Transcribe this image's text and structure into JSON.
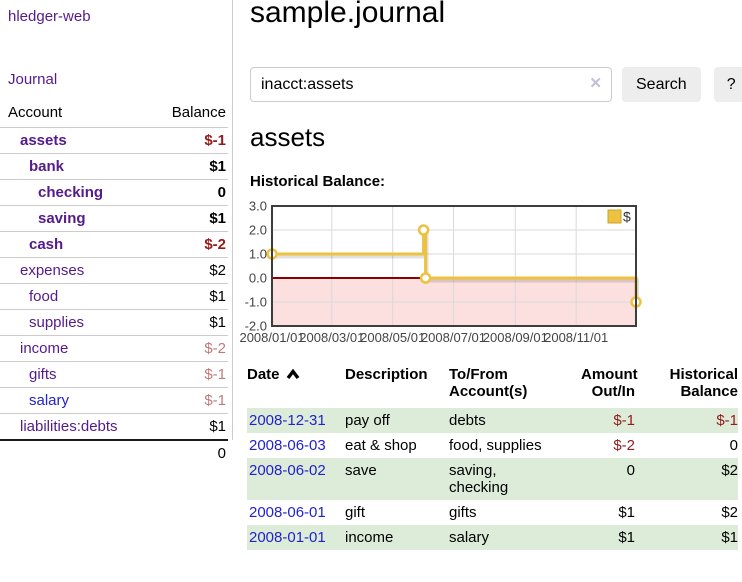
{
  "sidebar": {
    "app_title": "hledger-web",
    "journal_label": "Journal",
    "accounts_header": {
      "account": "Account",
      "balance": "Balance"
    },
    "accounts": [
      {
        "name": "assets",
        "depth": 1,
        "bold": true,
        "balance": "$-1",
        "soft": false,
        "blue": false
      },
      {
        "name": "bank",
        "depth": 2,
        "bold": true,
        "balance": "$1",
        "soft": false,
        "blue": false
      },
      {
        "name": "checking",
        "depth": 3,
        "bold": true,
        "balance": "0",
        "soft": false,
        "blue": false
      },
      {
        "name": "saving",
        "depth": 3,
        "bold": true,
        "balance": "$1",
        "soft": false,
        "blue": false
      },
      {
        "name": "cash",
        "depth": 2,
        "bold": true,
        "balance": "$-2",
        "soft": false,
        "blue": false
      },
      {
        "name": "expenses",
        "depth": 1,
        "bold": false,
        "balance": "$2",
        "soft": false,
        "blue": false
      },
      {
        "name": "food",
        "depth": 2,
        "bold": false,
        "balance": "$1",
        "soft": false,
        "blue": false
      },
      {
        "name": "supplies",
        "depth": 2,
        "bold": false,
        "balance": "$1",
        "soft": false,
        "blue": false
      },
      {
        "name": "income",
        "depth": 1,
        "bold": false,
        "balance": "$-2",
        "soft": true,
        "blue": false
      },
      {
        "name": "gifts",
        "depth": 2,
        "bold": false,
        "balance": "$-1",
        "soft": true,
        "blue": false
      },
      {
        "name": "salary",
        "depth": 2,
        "bold": false,
        "balance": "$-1",
        "soft": true,
        "blue": true
      },
      {
        "name": "liabilities:debts",
        "depth": 1,
        "bold": false,
        "balance": "$1",
        "soft": false,
        "blue": false
      }
    ],
    "total": "0"
  },
  "main": {
    "title": "sample.journal",
    "section_title": "assets"
  },
  "search": {
    "value": "inacct:assets",
    "clear_glyph": "✕",
    "button_label": "Search",
    "help_label": "?"
  },
  "chart_data": {
    "type": "line",
    "step": true,
    "title": "Historical Balance:",
    "series": [
      {
        "name": "$",
        "color": "#edc240",
        "points": [
          [
            "2008-01-01",
            1
          ],
          [
            "2008-06-01",
            2
          ],
          [
            "2008-06-03",
            0
          ],
          [
            "2008-12-31",
            -1
          ]
        ]
      }
    ],
    "x_range": [
      "2008-01-01",
      "2008-12-31"
    ],
    "x_ticks": [
      "2008/01/01",
      "2008/03/01",
      "2008/05/01",
      "2008/07/01",
      "2008/09/01",
      "2008/11/01"
    ],
    "y_ticks": [
      3.0,
      2.0,
      1.0,
      0.0,
      -1.0,
      -2.0
    ],
    "ylim": [
      -2,
      3
    ],
    "grid": true,
    "legend_position": "top-right",
    "negative_region_shaded": true,
    "colors": {
      "line": "#edc240",
      "marker_fill": "#ffffff",
      "negative_fill": "#fcdfdf",
      "zero_line": "#8b0000",
      "gridline": "#d9d9d9",
      "plot_border": "#3d3d3d",
      "tick_text": "#444444"
    }
  },
  "register": {
    "headers": {
      "date": "Date",
      "description": "Description",
      "accounts": "To/From\nAccount(s)",
      "amount": "Amount\nOut/In",
      "balance": "Historical\nBalance"
    },
    "rows": [
      {
        "date": "2008-12-31",
        "description": "pay off",
        "accounts": "debts",
        "amount": "$-1",
        "balance": "$-1"
      },
      {
        "date": "2008-06-03",
        "description": "eat & shop",
        "accounts": "food, supplies",
        "amount": "$-2",
        "balance": "0"
      },
      {
        "date": "2008-06-02",
        "description": "save",
        "accounts": "saving,\nchecking",
        "amount": "0",
        "balance": "$2"
      },
      {
        "date": "2008-06-01",
        "description": "gift",
        "accounts": "gifts",
        "amount": "$1",
        "balance": "$2"
      },
      {
        "date": "2008-01-01",
        "description": "income",
        "accounts": "salary",
        "amount": "$1",
        "balance": "$1"
      }
    ]
  },
  "colors": {
    "account_purple": "#551a8b",
    "link_blue": "#2222cc",
    "negative_strong": "#951b1b",
    "negative_soft": "#bf7b7b",
    "row_green": "#dcecd9",
    "button_bg": "#ededed",
    "divider": "#cccccc"
  }
}
